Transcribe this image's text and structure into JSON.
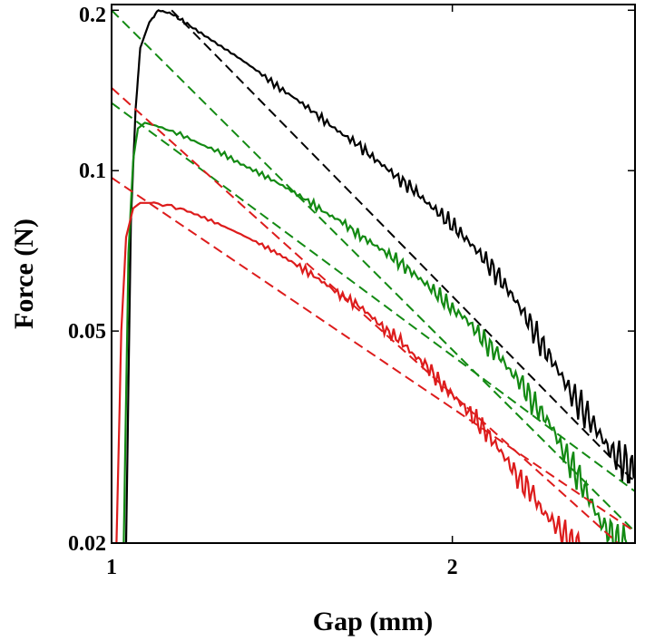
{
  "chart_data": {
    "type": "line",
    "title": "",
    "xlabel": "Gap (mm)",
    "ylabel": "Force (N)",
    "xscale": "log",
    "yscale": "log",
    "xlim": [
      1,
      2.9
    ],
    "ylim": [
      0.02,
      0.205
    ],
    "xticks": [
      {
        "value": 1,
        "label": "1"
      },
      {
        "value": 2,
        "label": "2"
      }
    ],
    "yticks": [
      {
        "value": 0.02,
        "label": "0.02"
      },
      {
        "value": 0.05,
        "label": "0.05"
      },
      {
        "value": 0.1,
        "label": "0.1"
      },
      {
        "value": 0.2,
        "label": "0.2"
      }
    ],
    "grid": false,
    "legend": "none",
    "series": [
      {
        "kind": "measured",
        "color": "#000000",
        "points": [
          [
            1.03,
            0.02
          ],
          [
            1.04,
            0.08
          ],
          [
            1.05,
            0.13
          ],
          [
            1.06,
            0.17
          ],
          [
            1.08,
            0.19
          ],
          [
            1.1,
            0.2
          ],
          [
            1.13,
            0.197
          ],
          [
            1.16,
            0.19
          ],
          [
            1.2,
            0.181
          ],
          [
            1.25,
            0.171
          ],
          [
            1.3,
            0.162
          ],
          [
            1.35,
            0.153
          ],
          [
            1.4,
            0.144
          ],
          [
            1.45,
            0.137
          ],
          [
            1.5,
            0.13
          ],
          [
            1.55,
            0.123
          ],
          [
            1.6,
            0.117
          ],
          [
            1.65,
            0.112
          ],
          [
            1.7,
            0.106
          ],
          [
            1.75,
            0.101
          ],
          [
            1.8,
            0.096
          ],
          [
            1.85,
            0.092
          ],
          [
            1.9,
            0.087
          ],
          [
            1.95,
            0.083
          ],
          [
            2.0,
            0.079
          ],
          [
            2.05,
            0.075
          ],
          [
            2.1,
            0.071
          ],
          [
            2.15,
            0.067
          ],
          [
            2.2,
            0.063
          ],
          [
            2.25,
            0.059
          ],
          [
            2.3,
            0.055
          ],
          [
            2.35,
            0.051
          ],
          [
            2.4,
            0.047
          ],
          [
            2.45,
            0.044
          ],
          [
            2.5,
            0.041
          ],
          [
            2.55,
            0.038
          ],
          [
            2.6,
            0.036
          ],
          [
            2.65,
            0.034
          ],
          [
            2.7,
            0.032
          ],
          [
            2.75,
            0.03
          ],
          [
            2.8,
            0.029
          ],
          [
            2.85,
            0.028
          ],
          [
            2.9,
            0.027
          ]
        ]
      },
      {
        "kind": "measured",
        "color": "#138a13",
        "points": [
          [
            1.025,
            0.02
          ],
          [
            1.035,
            0.07
          ],
          [
            1.045,
            0.105
          ],
          [
            1.055,
            0.12
          ],
          [
            1.07,
            0.123
          ],
          [
            1.1,
            0.121
          ],
          [
            1.15,
            0.117
          ],
          [
            1.2,
            0.112
          ],
          [
            1.25,
            0.108
          ],
          [
            1.3,
            0.103
          ],
          [
            1.35,
            0.099
          ],
          [
            1.4,
            0.095
          ],
          [
            1.45,
            0.091
          ],
          [
            1.5,
            0.087
          ],
          [
            1.55,
            0.083
          ],
          [
            1.6,
            0.08
          ],
          [
            1.65,
            0.076
          ],
          [
            1.7,
            0.073
          ],
          [
            1.75,
            0.07
          ],
          [
            1.8,
            0.067
          ],
          [
            1.85,
            0.064
          ],
          [
            1.9,
            0.061
          ],
          [
            1.95,
            0.058
          ],
          [
            2.0,
            0.055
          ],
          [
            2.05,
            0.053
          ],
          [
            2.1,
            0.05
          ],
          [
            2.15,
            0.047
          ],
          [
            2.2,
            0.045
          ],
          [
            2.25,
            0.042
          ],
          [
            2.3,
            0.04
          ],
          [
            2.35,
            0.037
          ],
          [
            2.4,
            0.035
          ],
          [
            2.45,
            0.033
          ],
          [
            2.5,
            0.03
          ],
          [
            2.55,
            0.028
          ],
          [
            2.6,
            0.026
          ],
          [
            2.65,
            0.024
          ],
          [
            2.7,
            0.022
          ],
          [
            2.75,
            0.021
          ],
          [
            2.8,
            0.02
          ],
          [
            2.85,
            0.02
          ]
        ]
      },
      {
        "kind": "measured",
        "color": "#dd1c1c",
        "points": [
          [
            1.01,
            0.02
          ],
          [
            1.02,
            0.05
          ],
          [
            1.03,
            0.075
          ],
          [
            1.045,
            0.085
          ],
          [
            1.06,
            0.087
          ],
          [
            1.09,
            0.087
          ],
          [
            1.15,
            0.085
          ],
          [
            1.2,
            0.082
          ],
          [
            1.25,
            0.079
          ],
          [
            1.3,
            0.076
          ],
          [
            1.35,
            0.073
          ],
          [
            1.4,
            0.07
          ],
          [
            1.45,
            0.067
          ],
          [
            1.5,
            0.064
          ],
          [
            1.55,
            0.061
          ],
          [
            1.6,
            0.058
          ],
          [
            1.65,
            0.056
          ],
          [
            1.7,
            0.053
          ],
          [
            1.75,
            0.05
          ],
          [
            1.8,
            0.048
          ],
          [
            1.85,
            0.045
          ],
          [
            1.9,
            0.043
          ],
          [
            1.95,
            0.04
          ],
          [
            2.0,
            0.038
          ],
          [
            2.05,
            0.036
          ],
          [
            2.1,
            0.034
          ],
          [
            2.15,
            0.032
          ],
          [
            2.2,
            0.03
          ],
          [
            2.25,
            0.028
          ],
          [
            2.3,
            0.026
          ],
          [
            2.35,
            0.025
          ],
          [
            2.4,
            0.023
          ],
          [
            2.45,
            0.022
          ],
          [
            2.5,
            0.021
          ],
          [
            2.55,
            0.02
          ],
          [
            2.6,
            0.02
          ]
        ]
      },
      {
        "kind": "fit",
        "color": "#000000",
        "points": [
          [
            1.13,
            0.2
          ],
          [
            2.9,
            0.026
          ]
        ]
      },
      {
        "kind": "fit",
        "color": "#138a13",
        "points": [
          [
            1.0,
            0.2
          ],
          [
            2.9,
            0.021
          ]
        ]
      },
      {
        "kind": "fit",
        "color": "#138a13",
        "points": [
          [
            1.0,
            0.134
          ],
          [
            2.9,
            0.025
          ]
        ]
      },
      {
        "kind": "fit",
        "color": "#dd1c1c",
        "points": [
          [
            1.0,
            0.143
          ],
          [
            2.8,
            0.02
          ]
        ]
      },
      {
        "kind": "fit",
        "color": "#dd1c1c",
        "points": [
          [
            1.0,
            0.097
          ],
          [
            2.9,
            0.021
          ]
        ]
      }
    ]
  }
}
